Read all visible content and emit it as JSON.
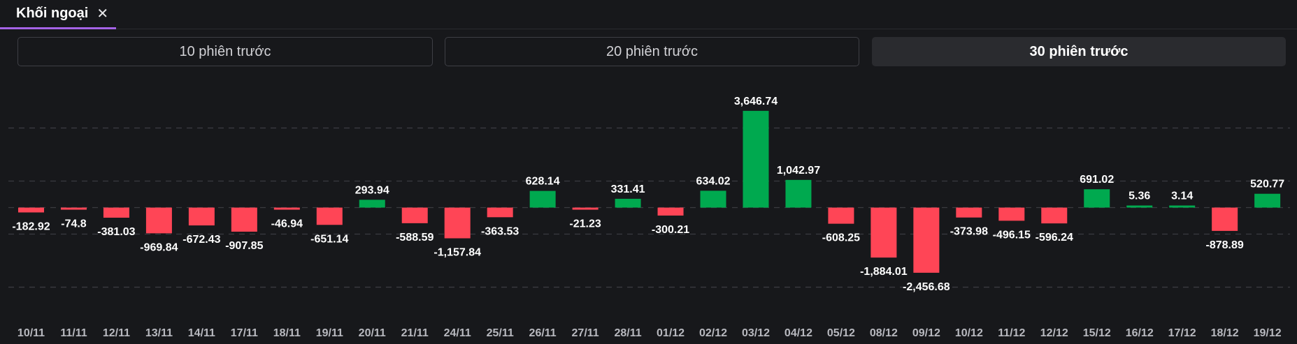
{
  "tab": {
    "label": "Khối ngoại",
    "close_icon": "close-icon"
  },
  "range_options": [
    {
      "label": "10 phiên trước",
      "active": false
    },
    {
      "label": "20 phiên trước",
      "active": false
    },
    {
      "label": "30 phiên trước",
      "active": true
    }
  ],
  "colors": {
    "positive": "#00a94f",
    "negative": "#ff4556",
    "accent": "#a463e6"
  },
  "chart_data": {
    "type": "bar",
    "title": "",
    "xlabel": "",
    "ylabel": "",
    "ylim": [
      -3000,
      4000
    ],
    "gridlines": [
      -3000,
      -1000,
      1000,
      3000
    ],
    "categories": [
      "10/11",
      "11/11",
      "12/11",
      "13/11",
      "14/11",
      "17/11",
      "18/11",
      "19/11",
      "20/11",
      "21/11",
      "24/11",
      "25/11",
      "26/11",
      "27/11",
      "28/11",
      "01/12",
      "02/12",
      "03/12",
      "04/12",
      "05/12",
      "08/12",
      "09/12",
      "10/12",
      "11/12",
      "12/12",
      "15/12",
      "16/12",
      "17/12",
      "18/12",
      "19/12"
    ],
    "values": [
      -182.92,
      -74.8,
      -381.03,
      -969.84,
      -672.43,
      -907.85,
      -46.94,
      -651.14,
      293.94,
      -588.59,
      -1157.84,
      -363.53,
      628.14,
      -21.23,
      331.41,
      -300.21,
      634.02,
      3646.74,
      1042.97,
      -608.25,
      -1884.01,
      -2456.68,
      -373.98,
      -496.15,
      -596.24,
      691.02,
      5.36,
      3.14,
      -878.89,
      520.77
    ],
    "labels": [
      "-182.92",
      "-74.8",
      "-381.03",
      "-969.84",
      "-672.43",
      "-907.85",
      "-46.94",
      "-651.14",
      "293.94",
      "-588.59",
      "-1,157.84",
      "-363.53",
      "628.14",
      "-21.23",
      "331.41",
      "-300.21",
      "634.02",
      "3,646.74",
      "1,042.97",
      "-608.25",
      "-1,884.01",
      "-2,456.68",
      "-373.98",
      "-496.15",
      "-596.24",
      "691.02",
      "5.36",
      "3.14",
      "-878.89",
      "520.77"
    ]
  }
}
